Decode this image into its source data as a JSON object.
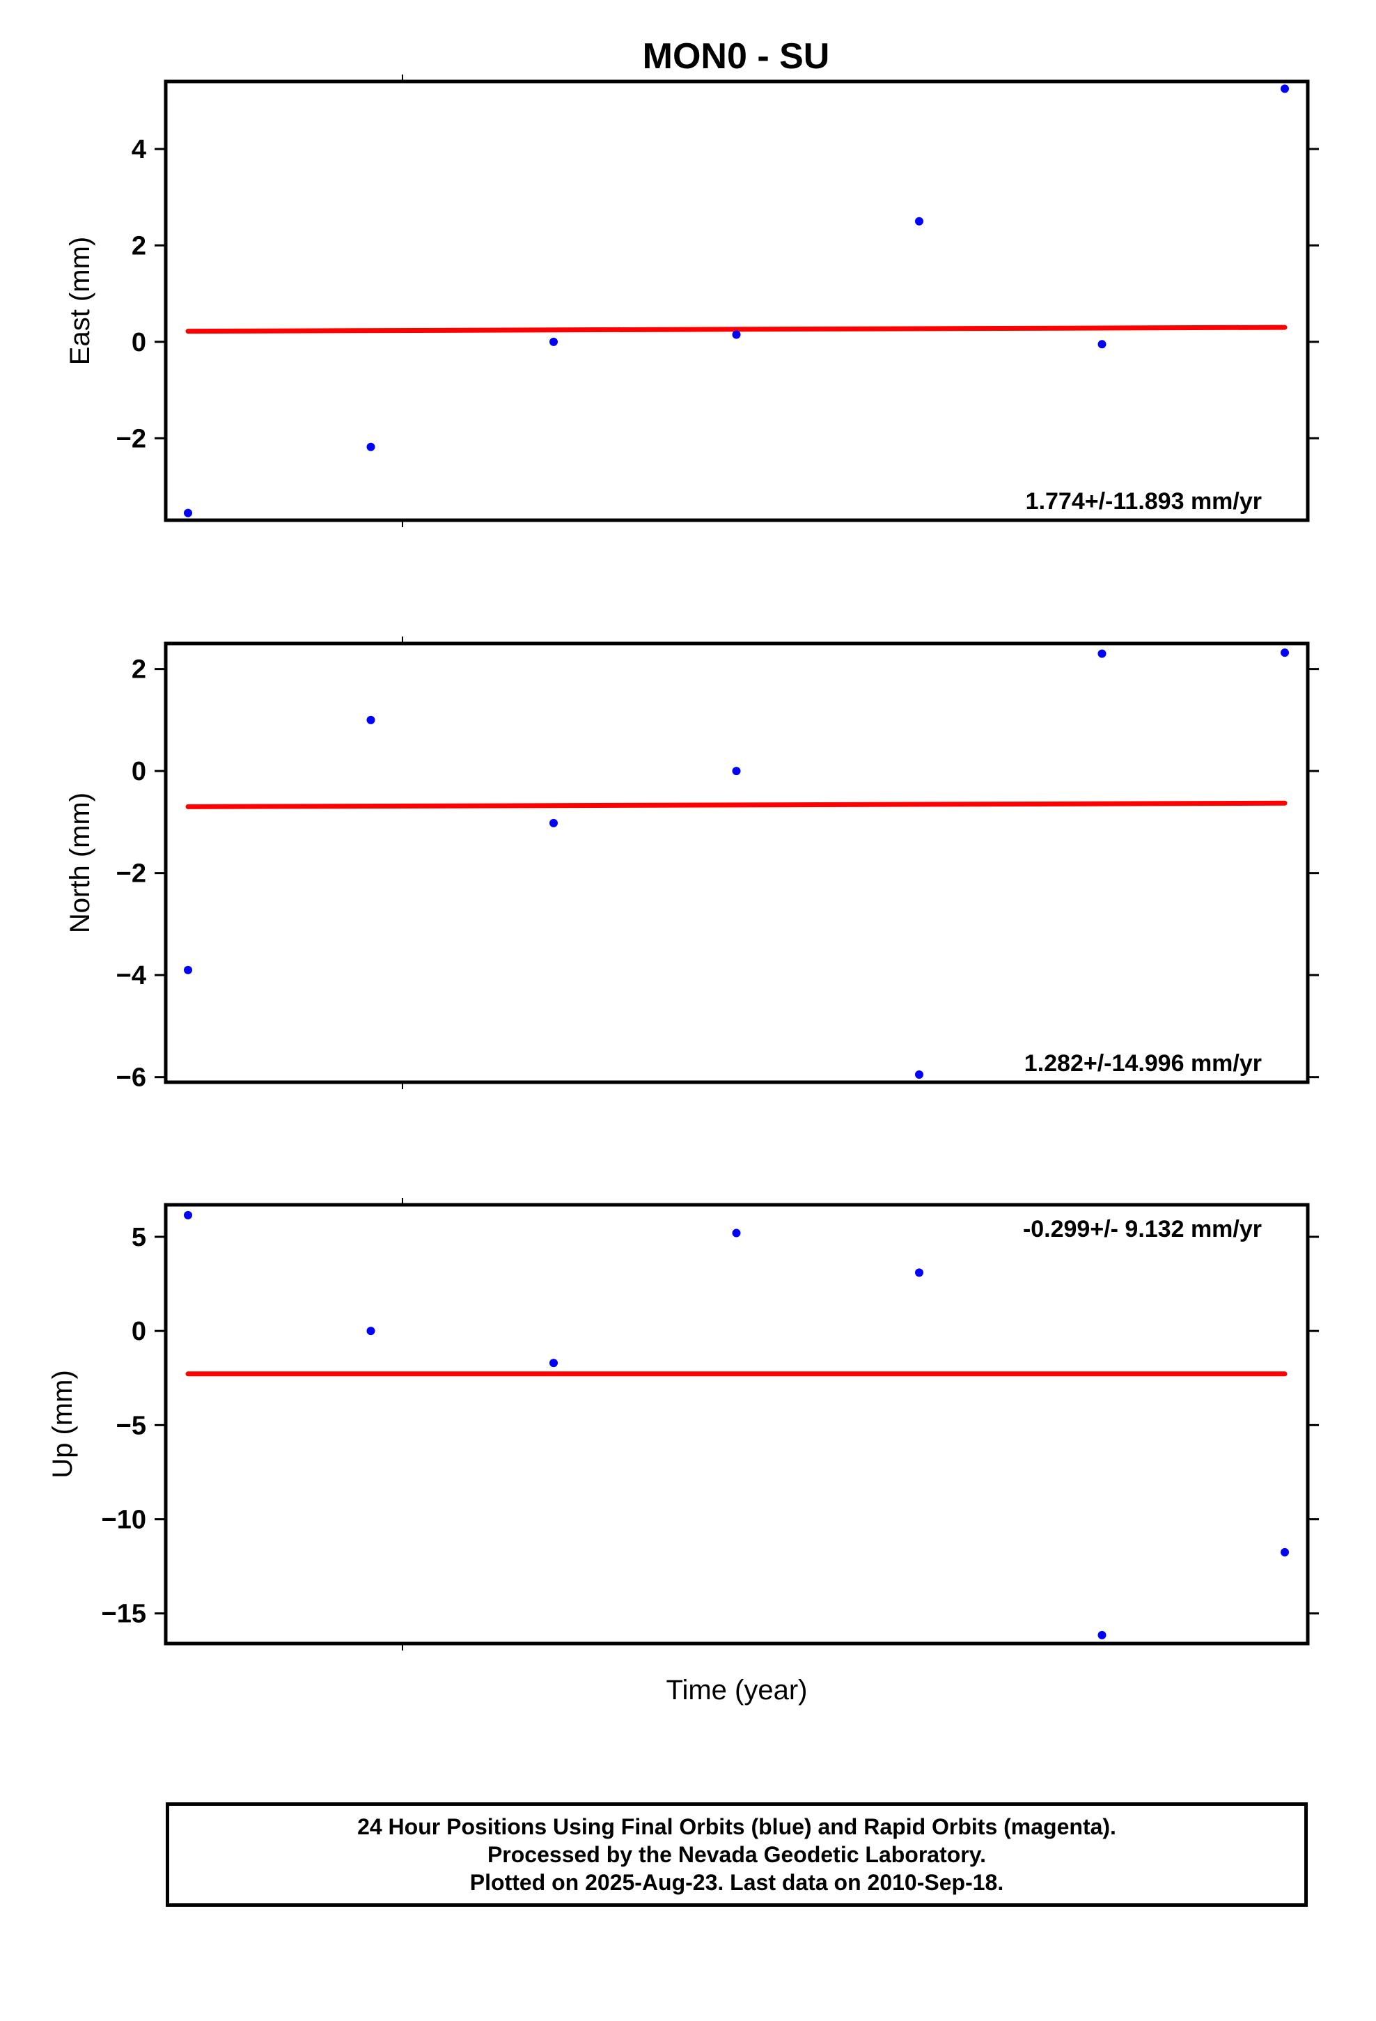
{
  "title": "MON0 - SU",
  "colors": {
    "final_orbits": "#0000ff",
    "trend_line": "#ff0000",
    "frame": "#000000"
  },
  "chart_data": [
    {
      "type": "scatter",
      "panel": "east",
      "ylabel": "East (mm)",
      "xlabel": "",
      "ylim": [
        -3.7,
        5.4
      ],
      "yticks": [
        -2,
        0,
        2,
        4
      ],
      "ytick_labels": [
        "−2",
        "0",
        "2",
        "4"
      ],
      "series": [
        {
          "values": [
            {
              "x": 0,
              "y": -3.55
            },
            {
              "x": 1,
              "y": -2.18
            },
            {
              "x": 2,
              "y": 0.0
            },
            {
              "x": 3,
              "y": 0.15
            },
            {
              "x": 4,
              "y": 2.5
            },
            {
              "x": 5,
              "y": -0.05
            },
            {
              "x": 6,
              "y": 5.25
            }
          ]
        }
      ],
      "trend": {
        "y_start": 0.22,
        "y_end": 0.3
      },
      "rate_label": "1.774+/-11.893 mm/yr",
      "rate_position": "bottom-right"
    },
    {
      "type": "scatter",
      "panel": "north",
      "ylabel": "North (mm)",
      "xlabel": "",
      "ylim": [
        -6.1,
        2.5
      ],
      "yticks": [
        -6,
        -4,
        -2,
        0,
        2
      ],
      "ytick_labels": [
        "−6",
        "−4",
        "−2",
        "0",
        "2"
      ],
      "series": [
        {
          "values": [
            {
              "x": 0,
              "y": -3.9
            },
            {
              "x": 1,
              "y": 1.0
            },
            {
              "x": 2,
              "y": -1.02
            },
            {
              "x": 3,
              "y": 0.0
            },
            {
              "x": 4,
              "y": -5.95
            },
            {
              "x": 5,
              "y": 2.3
            },
            {
              "x": 6,
              "y": 2.32
            }
          ]
        }
      ],
      "trend": {
        "y_start": -0.7,
        "y_end": -0.63
      },
      "rate_label": "1.282+/-14.996 mm/yr",
      "rate_position": "bottom-right"
    },
    {
      "type": "scatter",
      "panel": "up",
      "ylabel": "Up (mm)",
      "xlabel": "Time (year)",
      "ylim": [
        -16.6,
        6.7
      ],
      "yticks": [
        -15,
        -10,
        -5,
        0,
        5
      ],
      "ytick_labels": [
        "−15",
        "−10",
        "−5",
        "0",
        "5"
      ],
      "series": [
        {
          "values": [
            {
              "x": 0,
              "y": 6.15
            },
            {
              "x": 1,
              "y": 0.0
            },
            {
              "x": 2,
              "y": -1.7
            },
            {
              "x": 3,
              "y": 5.2
            },
            {
              "x": 4,
              "y": 3.1
            },
            {
              "x": 5,
              "y": -16.15
            },
            {
              "x": 6,
              "y": -11.75
            }
          ]
        }
      ],
      "trend": {
        "y_start": -2.28,
        "y_end": -2.28
      },
      "rate_label": "-0.299+/- 9.132 mm/yr",
      "rate_position": "top-right"
    }
  ],
  "footer": {
    "line1": "24 Hour Positions Using Final Orbits (blue) and Rapid Orbits (magenta).",
    "line2": "Processed by the Nevada Geodetic Laboratory.",
    "line3": "Plotted on 2025-Aug-23. Last data on 2010-Sep-18."
  }
}
